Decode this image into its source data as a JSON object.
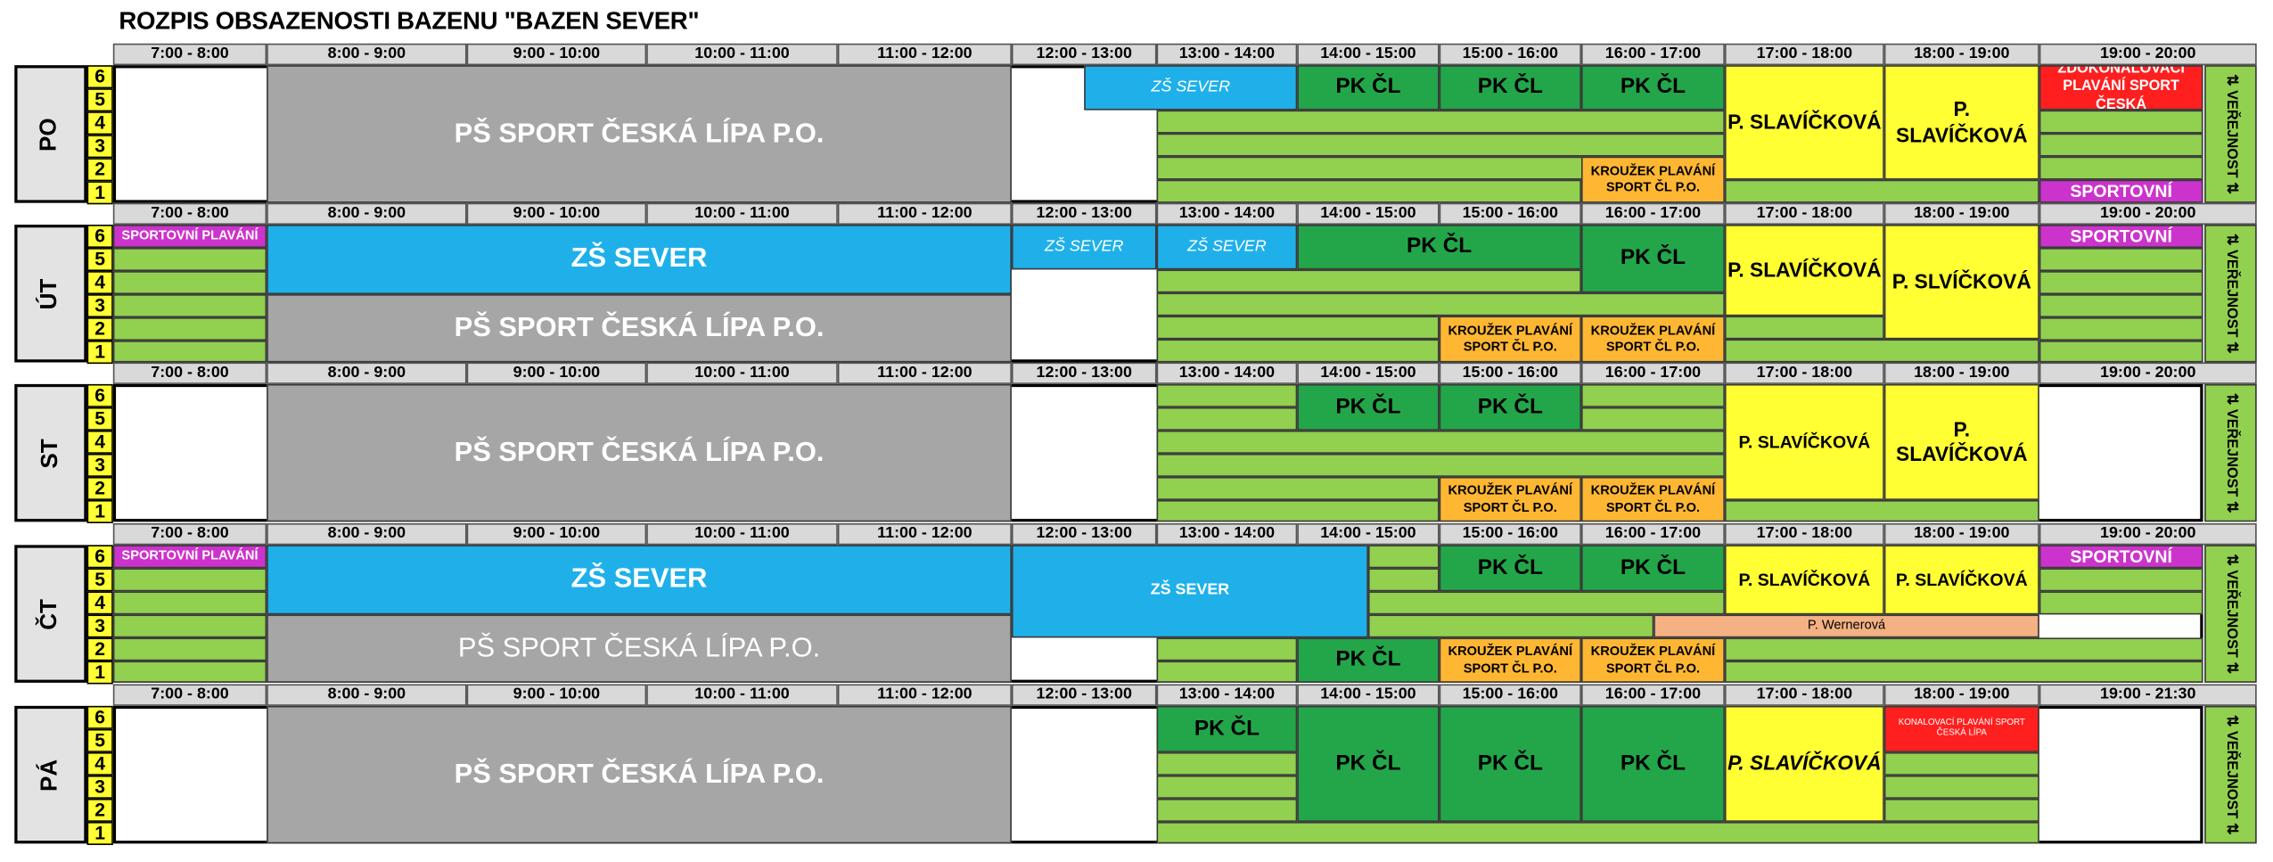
{
  "title": "ROZPIS OBSAZENOSTI BAZENU \"BAZEN SEVER\"",
  "lanes": [
    "6",
    "5",
    "4",
    "3",
    "2",
    "1"
  ],
  "public_label": "⇅ VEŘEJNOST ⇅",
  "days": [
    {
      "name": "PO",
      "slots": [
        "7:00 - 8:00",
        "8:00 - 9:00",
        "9:00 - 10:00",
        "10:00 - 11:00",
        "11:00 - 12:00",
        "12:00 - 13:00",
        "13:00 - 14:00",
        "14:00 - 15:00",
        "15:00 - 16:00",
        "16:00 - 17:00",
        "17:00 - 18:00",
        "18:00 - 19:00",
        "19:00 - 20:00"
      ],
      "labels": [
        "PŠ SPORT ČESKÁ LÍPA P.O.",
        "ZŠ SEVER",
        "PK ČL",
        "PK ČL",
        "PK ČL",
        "P. SLAVÍČKOVÁ",
        "P. SLAVÍČKOVÁ",
        "ZDOKONALOVACÍ PLAVÁNÍ SPORT ČESKÁ",
        "KROUŽEK PLAVÁNÍ SPORT ČL P.O.",
        "SPORTOVNÍ"
      ]
    },
    {
      "name": "ÚT",
      "slots": [
        "7:00 - 8:00",
        "8:00 - 9:00",
        "9:00 - 10:00",
        "10:00 - 11:00",
        "11:00 - 12:00",
        "12:00 - 13:00",
        "13:00 - 14:00",
        "14:00 - 15:00",
        "15:00 - 16:00",
        "16:00 - 17:00",
        "17:00 - 18:00",
        "18:00 - 19:00",
        "19:00 - 20:00"
      ],
      "labels": [
        "SPORTOVNÍ PLAVÁNÍ",
        "ZŠ SEVER",
        "PŠ SPORT ČESKÁ LÍPA P.O.",
        "ZŠ SEVER",
        "ZŠ SEVER",
        "PK ČL",
        "PK ČL",
        "P. SLAVÍČKOVÁ",
        "P. SLVÍČKOVÁ",
        "SPORTOVNÍ",
        "KROUŽEK PLAVÁNÍ SPORT ČL P.O.",
        "KROUŽEK PLAVÁNÍ SPORT ČL P.O."
      ]
    },
    {
      "name": "ST",
      "slots": [
        "7:00 - 8:00",
        "8:00 - 9:00",
        "9:00 - 10:00",
        "10:00 - 11:00",
        "11:00 - 12:00",
        "12:00 - 13:00",
        "13:00 - 14:00",
        "14:00 - 15:00",
        "15:00 - 16:00",
        "16:00 - 17:00",
        "17:00 - 18:00",
        "18:00 - 19:00",
        "19:00 - 20:00"
      ],
      "labels": [
        "PŠ SPORT ČESKÁ LÍPA P.O.",
        "PK ČL",
        "PK ČL",
        "P. SLAVÍČKOVÁ",
        "P. SLAVÍČKOVÁ",
        "KROUŽEK PLAVÁNÍ SPORT ČL P.O.",
        "KROUŽEK PLAVÁNÍ SPORT ČL P.O."
      ]
    },
    {
      "name": "ČT",
      "slots": [
        "7:00 - 8:00",
        "8:00 - 9:00",
        "9:00 - 10:00",
        "10:00 - 11:00",
        "11:00 - 12:00",
        "12:00 - 13:00",
        "13:00 - 14:00",
        "14:00 - 15:00",
        "15:00 - 16:00",
        "16:00 - 17:00",
        "17:00 - 18:00",
        "18:00 - 19:00",
        "19:00 - 20:00"
      ],
      "labels": [
        "SPORTOVNÍ PLAVÁNÍ",
        "ZŠ SEVER",
        "PŠ SPORT ČESKÁ LÍPA P.O.",
        "ZŠ SEVER",
        "PK ČL",
        "PK ČL",
        "P. SLAVÍČKOVÁ",
        "P. SLAVÍČKOVÁ",
        "SPORTOVNÍ",
        "P. Wernerová",
        "PK ČL",
        "KROUŽEK PLAVÁNÍ SPORT ČL P.O.",
        "KROUŽEK PLAVÁNÍ SPORT ČL P.O."
      ]
    },
    {
      "name": "PÁ",
      "slots": [
        "7:00 - 8:00",
        "8:00 - 9:00",
        "9:00 - 10:00",
        "10:00 - 11:00",
        "11:00 - 12:00",
        "12:00 - 13:00",
        "13:00 - 14:00",
        "14:00 - 15:00",
        "15:00 - 16:00",
        "16:00 - 17:00",
        "17:00 - 18:00",
        "18:00 - 19:00",
        "19:00 - 21:30"
      ],
      "labels": [
        "PŠ SPORT ČESKÁ LÍPA P.O.",
        "PK ČL",
        "PK ČL",
        "PK ČL",
        "PK ČL",
        "P. SLAVÍČKOVÁ",
        "KONALOVACÍ PLAVÁNÍ SPORT ČESKÁ LÍPA"
      ]
    }
  ]
}
